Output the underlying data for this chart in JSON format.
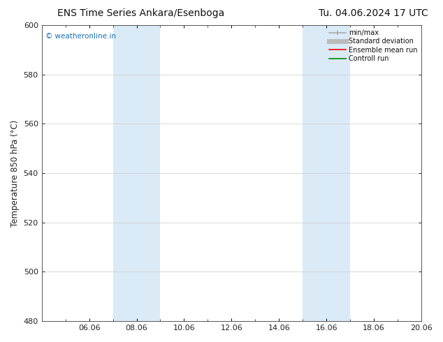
{
  "title_left": "ENS Time Series Ankara/Esenboga",
  "title_right": "Tu. 04.06.2024 17 UTC",
  "ylabel": "Temperature 850 hPa (°C)",
  "ylim": [
    480,
    600
  ],
  "yticks": [
    480,
    500,
    520,
    540,
    560,
    580,
    600
  ],
  "x_min": 0,
  "x_max": 16,
  "xtick_labels": [
    "06.06",
    "08.06",
    "10.06",
    "12.06",
    "14.06",
    "16.06",
    "18.06",
    "20.06"
  ],
  "xtick_positions": [
    2,
    4,
    6,
    8,
    10,
    12,
    14,
    16
  ],
  "shaded_bands": [
    {
      "x_start": 3,
      "x_end": 5
    },
    {
      "x_start": 11,
      "x_end": 13
    }
  ],
  "shaded_color": "#daeaf7",
  "background_color": "#ffffff",
  "watermark_text": "© weatheronline.in",
  "watermark_color": "#1a6eb5",
  "legend_entries": [
    {
      "label": "min/max",
      "color": "#aaaaaa",
      "lw": 1.2
    },
    {
      "label": "Standard deviation",
      "color": "#bbbbbb",
      "lw": 5
    },
    {
      "label": "Ensemble mean run",
      "color": "#ff0000",
      "lw": 1.2
    },
    {
      "label": "Controll run",
      "color": "#008800",
      "lw": 1.2
    }
  ],
  "grid_color": "#cccccc",
  "tick_color": "#222222",
  "spine_color": "#555555",
  "title_fontsize": 10,
  "label_fontsize": 8.5,
  "tick_fontsize": 8,
  "watermark_fontsize": 7.5
}
